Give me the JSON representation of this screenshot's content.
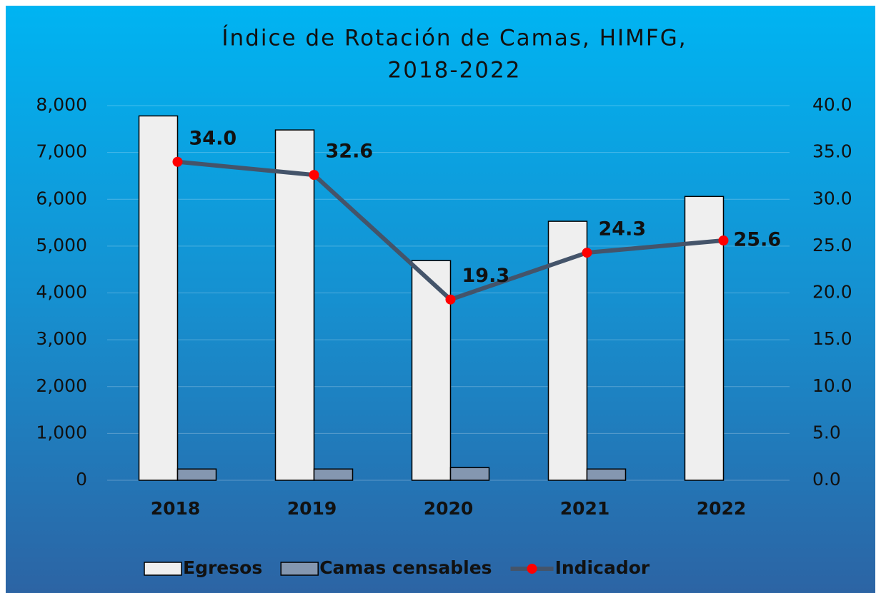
{
  "chart_data": {
    "type": "bar_line",
    "title": [
      "Índice de Rotación de Camas, HIMFG,",
      "2018-2022"
    ],
    "categories": [
      "2018",
      "2019",
      "2020",
      "2021",
      "2022"
    ],
    "series": [
      {
        "name": "Egresos",
        "type": "bar",
        "color": "#efefef",
        "values": [
          7780,
          7480,
          4690,
          5530,
          6060
        ]
      },
      {
        "name": "Camas censables",
        "type": "bar",
        "color": "#8497b0",
        "values": [
          240,
          240,
          270,
          240,
          null
        ]
      },
      {
        "name": "Indicador",
        "type": "line",
        "axis": "y2",
        "color": "#44546a",
        "marker_color": "#ff0000",
        "values": [
          34.0,
          32.6,
          19.3,
          24.3,
          25.6
        ],
        "value_labels": [
          "34.0",
          "32.6",
          "19.3",
          "24.3",
          "25.6"
        ]
      }
    ],
    "ylim": [
      0,
      8000
    ],
    "yticks": [
      {
        "value": 0,
        "label": "0"
      },
      {
        "value": 1000,
        "label": "1,000"
      },
      {
        "value": 2000,
        "label": "2,000"
      },
      {
        "value": 3000,
        "label": "3,000"
      },
      {
        "value": 4000,
        "label": "4,000"
      },
      {
        "value": 5000,
        "label": "5,000"
      },
      {
        "value": 6000,
        "label": "6,000"
      },
      {
        "value": 7000,
        "label": "7,000"
      },
      {
        "value": 8000,
        "label": "8,000"
      }
    ],
    "y2lim": [
      0,
      40
    ],
    "y2ticks": [
      {
        "value": 0,
        "label": "0.0"
      },
      {
        "value": 5,
        "label": "5.0"
      },
      {
        "value": 10,
        "label": "10.0"
      },
      {
        "value": 15,
        "label": "15.0"
      },
      {
        "value": 20,
        "label": "20.0"
      },
      {
        "value": 25,
        "label": "25.0"
      },
      {
        "value": 30,
        "label": "30.0"
      },
      {
        "value": 35,
        "label": "35.0"
      },
      {
        "value": 40,
        "label": "40.0"
      }
    ],
    "grid": true,
    "legend": "bottom"
  }
}
